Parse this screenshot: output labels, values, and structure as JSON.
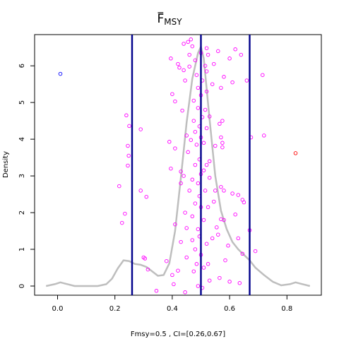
{
  "chart_data": {
    "type": "scatter",
    "title": "F̅MSY",
    "title_main": "F",
    "title_sub": "MSY",
    "title_overline": true,
    "xlabel": "Fmsy=0.5 , CI=[0.26,0.67]",
    "ylabel": "Density",
    "xlim": [
      -0.08,
      0.92
    ],
    "ylim": [
      -0.25,
      6.85
    ],
    "x_ticks": [
      0.0,
      0.2,
      0.4,
      0.6,
      0.8
    ],
    "x_tick_labels": [
      "0.0",
      "0.2",
      "0.4",
      "0.6",
      "0.8"
    ],
    "y_ticks": [
      0,
      1,
      2,
      3,
      4,
      5,
      6
    ],
    "y_tick_labels": [
      "0",
      "1",
      "2",
      "3",
      "4",
      "5",
      "6"
    ],
    "grid": false,
    "colors": {
      "density": "#bebebe",
      "points": "#ff00ff",
      "highlight_point": "#0000ff",
      "outlier_point": "#ff0000",
      "vertical_lines": "#00008b",
      "axes": "#000000"
    },
    "vertical_lines": [
      {
        "name": "CI lower",
        "x": 0.26
      },
      {
        "name": "Fmsy",
        "x": 0.5
      },
      {
        "name": "CI upper",
        "x": 0.67
      }
    ],
    "density_curve": {
      "x": [
        -0.04,
        -0.01,
        0.01,
        0.03,
        0.06,
        0.1,
        0.14,
        0.17,
        0.19,
        0.21,
        0.23,
        0.25,
        0.27,
        0.29,
        0.31,
        0.33,
        0.35,
        0.37,
        0.39,
        0.41,
        0.43,
        0.45,
        0.47,
        0.49,
        0.5,
        0.51,
        0.53,
        0.55,
        0.57,
        0.59,
        0.61,
        0.63,
        0.65,
        0.67,
        0.69,
        0.72,
        0.75,
        0.78,
        0.81,
        0.83,
        0.85,
        0.88
      ],
      "y": [
        0.0,
        0.05,
        0.1,
        0.06,
        0.0,
        0.0,
        0.0,
        0.05,
        0.2,
        0.48,
        0.7,
        0.68,
        0.6,
        0.58,
        0.52,
        0.4,
        0.28,
        0.3,
        0.62,
        1.5,
        2.95,
        4.45,
        5.65,
        6.35,
        6.52,
        6.2,
        4.55,
        3.0,
        2.05,
        1.55,
        1.2,
        1.0,
        0.85,
        0.7,
        0.5,
        0.3,
        0.12,
        0.02,
        0.05,
        0.1,
        0.06,
        0.0
      ]
    },
    "points": [
      {
        "x": 0.01,
        "y": 5.78,
        "color": "highlight"
      },
      {
        "x": 0.83,
        "y": 3.62,
        "color": "outlier"
      },
      {
        "x": 0.215,
        "y": 2.72
      },
      {
        "x": 0.225,
        "y": 1.72
      },
      {
        "x": 0.235,
        "y": 1.97
      },
      {
        "x": 0.24,
        "y": 4.65
      },
      {
        "x": 0.25,
        "y": 4.36
      },
      {
        "x": 0.245,
        "y": 3.82
      },
      {
        "x": 0.248,
        "y": 3.55
      },
      {
        "x": 0.245,
        "y": 3.28
      },
      {
        "x": 0.29,
        "y": 4.27
      },
      {
        "x": 0.3,
        "y": 0.78
      },
      {
        "x": 0.305,
        "y": 0.75
      },
      {
        "x": 0.29,
        "y": 2.6
      },
      {
        "x": 0.31,
        "y": 2.43
      },
      {
        "x": 0.315,
        "y": 0.45
      },
      {
        "x": 0.345,
        "y": -0.13
      },
      {
        "x": 0.38,
        "y": 0.68
      },
      {
        "x": 0.39,
        "y": 3.93
      },
      {
        "x": 0.395,
        "y": 3.2
      },
      {
        "x": 0.4,
        "y": 5.23
      },
      {
        "x": 0.41,
        "y": 5.03
      },
      {
        "x": 0.4,
        "y": 0.3
      },
      {
        "x": 0.405,
        "y": 0.05
      },
      {
        "x": 0.395,
        "y": 6.2
      },
      {
        "x": 0.41,
        "y": 1.68
      },
      {
        "x": 0.42,
        "y": 0.42
      },
      {
        "x": 0.41,
        "y": 3.75
      },
      {
        "x": 0.42,
        "y": 6.05
      },
      {
        "x": 0.425,
        "y": 5.95
      },
      {
        "x": 0.43,
        "y": 3.12
      },
      {
        "x": 0.43,
        "y": 2.8
      },
      {
        "x": 0.43,
        "y": 1.2
      },
      {
        "x": 0.435,
        "y": 4.78
      },
      {
        "x": 0.44,
        "y": 5.88
      },
      {
        "x": 0.44,
        "y": 3.0
      },
      {
        "x": 0.445,
        "y": 2.0
      },
      {
        "x": 0.44,
        "y": 6.6
      },
      {
        "x": 0.445,
        "y": 5.6
      },
      {
        "x": 0.45,
        "y": 1.58
      },
      {
        "x": 0.45,
        "y": 0.78
      },
      {
        "x": 0.45,
        "y": 4.1
      },
      {
        "x": 0.445,
        "y": -0.17
      },
      {
        "x": 0.455,
        "y": 6.65
      },
      {
        "x": 0.455,
        "y": 3.65
      },
      {
        "x": 0.46,
        "y": 2.6
      },
      {
        "x": 0.46,
        "y": 6.3
      },
      {
        "x": 0.46,
        "y": 5.98
      },
      {
        "x": 0.465,
        "y": 6.72
      },
      {
        "x": 0.465,
        "y": 3.98
      },
      {
        "x": 0.47,
        "y": 2.9
      },
      {
        "x": 0.47,
        "y": 1.9
      },
      {
        "x": 0.47,
        "y": 1.25
      },
      {
        "x": 0.47,
        "y": 6.53
      },
      {
        "x": 0.475,
        "y": 5.05
      },
      {
        "x": 0.475,
        "y": 4.5
      },
      {
        "x": 0.475,
        "y": 0.4
      },
      {
        "x": 0.48,
        "y": 6.15
      },
      {
        "x": 0.48,
        "y": 4.2
      },
      {
        "x": 0.48,
        "y": 3.3
      },
      {
        "x": 0.48,
        "y": 2.25
      },
      {
        "x": 0.48,
        "y": 1.0
      },
      {
        "x": 0.485,
        "y": 5.75
      },
      {
        "x": 0.485,
        "y": 3.85
      },
      {
        "x": 0.485,
        "y": 0.6
      },
      {
        "x": 0.49,
        "y": 5.4
      },
      {
        "x": 0.49,
        "y": 4.85
      },
      {
        "x": 0.49,
        "y": 2.8
      },
      {
        "x": 0.49,
        "y": 1.55
      },
      {
        "x": 0.49,
        "y": 0.0
      },
      {
        "x": 0.495,
        "y": 4.35
      },
      {
        "x": 0.495,
        "y": 3.45
      },
      {
        "x": 0.495,
        "y": 2.45
      },
      {
        "x": 0.495,
        "y": 1.35
      },
      {
        "x": 0.5,
        "y": 6.35
      },
      {
        "x": 0.5,
        "y": 5.2
      },
      {
        "x": 0.5,
        "y": 4.05
      },
      {
        "x": 0.5,
        "y": 3.05
      },
      {
        "x": 0.5,
        "y": 2.15
      },
      {
        "x": 0.5,
        "y": 0.85
      },
      {
        "x": 0.505,
        "y": -0.05
      },
      {
        "x": 0.505,
        "y": 5.6
      },
      {
        "x": 0.505,
        "y": 4.6
      },
      {
        "x": 0.51,
        "y": 3.9
      },
      {
        "x": 0.51,
        "y": 3.15
      },
      {
        "x": 0.51,
        "y": 1.8
      },
      {
        "x": 0.51,
        "y": 0.5
      },
      {
        "x": 0.515,
        "y": 6.0
      },
      {
        "x": 0.515,
        "y": 4.8
      },
      {
        "x": 0.515,
        "y": 2.6
      },
      {
        "x": 0.52,
        "y": 6.48
      },
      {
        "x": 0.52,
        "y": 5.85
      },
      {
        "x": 0.52,
        "y": 5.3
      },
      {
        "x": 0.52,
        "y": 4.3
      },
      {
        "x": 0.52,
        "y": 3.3
      },
      {
        "x": 0.52,
        "y": 1.15
      },
      {
        "x": 0.525,
        "y": 6.3
      },
      {
        "x": 0.525,
        "y": 2.15
      },
      {
        "x": 0.525,
        "y": 0.6
      },
      {
        "x": 0.53,
        "y": 4.62
      },
      {
        "x": 0.53,
        "y": 3.4
      },
      {
        "x": 0.53,
        "y": 2.95
      },
      {
        "x": 0.53,
        "y": 0.15
      },
      {
        "x": 0.54,
        "y": 5.5
      },
      {
        "x": 0.54,
        "y": 1.3
      },
      {
        "x": 0.545,
        "y": 6.05
      },
      {
        "x": 0.545,
        "y": 2.3
      },
      {
        "x": 0.55,
        "y": 3.82
      },
      {
        "x": 0.55,
        "y": 2.6
      },
      {
        "x": 0.555,
        "y": 1.6
      },
      {
        "x": 0.56,
        "y": 6.4
      },
      {
        "x": 0.56,
        "y": 1.4
      },
      {
        "x": 0.565,
        "y": 4.42
      },
      {
        "x": 0.565,
        "y": 0.22
      },
      {
        "x": 0.57,
        "y": 5.4
      },
      {
        "x": 0.57,
        "y": 4.05
      },
      {
        "x": 0.57,
        "y": 2.7
      },
      {
        "x": 0.57,
        "y": 1.82
      },
      {
        "x": 0.575,
        "y": 4.5
      },
      {
        "x": 0.575,
        "y": 3.9
      },
      {
        "x": 0.575,
        "y": 3.78
      },
      {
        "x": 0.58,
        "y": 5.7
      },
      {
        "x": 0.58,
        "y": 2.6
      },
      {
        "x": 0.58,
        "y": 1.8
      },
      {
        "x": 0.585,
        "y": 0.7
      },
      {
        "x": 0.595,
        "y": 1.1
      },
      {
        "x": 0.6,
        "y": 6.2
      },
      {
        "x": 0.6,
        "y": 0.12
      },
      {
        "x": 0.61,
        "y": 5.55
      },
      {
        "x": 0.61,
        "y": 2.52
      },
      {
        "x": 0.62,
        "y": 6.45
      },
      {
        "x": 0.62,
        "y": 1.95
      },
      {
        "x": 0.63,
        "y": 2.48
      },
      {
        "x": 0.63,
        "y": 1.3
      },
      {
        "x": 0.635,
        "y": 0.08
      },
      {
        "x": 0.64,
        "y": 6.3
      },
      {
        "x": 0.645,
        "y": 2.35
      },
      {
        "x": 0.645,
        "y": 0.88
      },
      {
        "x": 0.65,
        "y": 2.28
      },
      {
        "x": 0.66,
        "y": 5.6
      },
      {
        "x": 0.67,
        "y": 1.52
      },
      {
        "x": 0.675,
        "y": 4.05
      },
      {
        "x": 0.69,
        "y": 0.95
      },
      {
        "x": 0.715,
        "y": 5.75
      },
      {
        "x": 0.72,
        "y": 4.1
      }
    ]
  }
}
